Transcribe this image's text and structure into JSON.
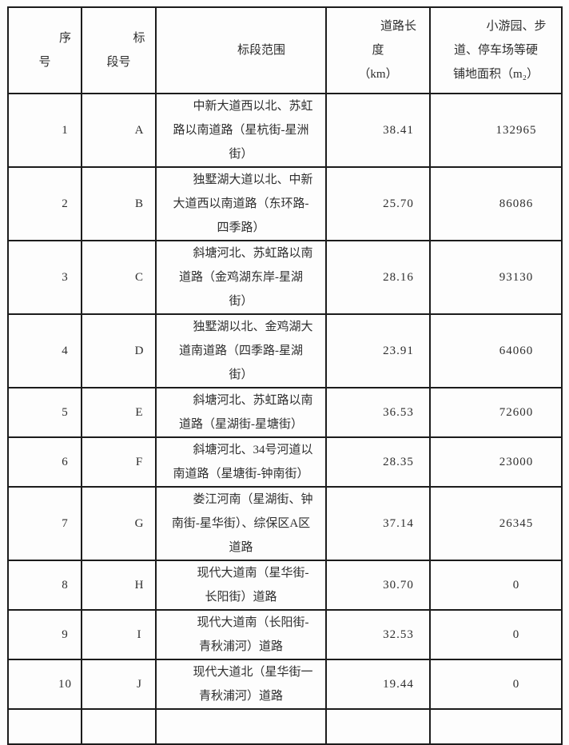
{
  "table": {
    "columns": [
      {
        "id": "seq",
        "label": "序\n号"
      },
      {
        "id": "section",
        "label": "标\n段号"
      },
      {
        "id": "scope",
        "label": "标段范围"
      },
      {
        "id": "length",
        "label": "道路长\n度\n（km）"
      },
      {
        "id": "area",
        "label": "小游园、步\n道、停车场等硬\n铺地面积（m₂）"
      }
    ],
    "rows": [
      {
        "seq": "1",
        "section": "A",
        "scope": "中新大道西以北、苏虹\n路以南道路（星杭街-星洲\n街）",
        "length": "38.41",
        "area": "132965"
      },
      {
        "seq": "2",
        "section": "B",
        "scope": "独墅湖大道以北、中新\n大道西以南道路（东环路-\n四季路）",
        "length": "25.70",
        "area": "86086"
      },
      {
        "seq": "3",
        "section": "C",
        "scope": "斜塘河北、苏虹路以南\n道路（金鸡湖东岸-星湖\n街）",
        "length": "28.16",
        "area": "93130"
      },
      {
        "seq": "4",
        "section": "D",
        "scope": "独墅湖以北、金鸡湖大\n道南道路（四季路-星湖\n街）",
        "length": "23.91",
        "area": "64060"
      },
      {
        "seq": "5",
        "section": "E",
        "scope": "斜塘河北、苏虹路以南\n道路（星湖街-星塘街）",
        "length": "36.53",
        "area": "72600"
      },
      {
        "seq": "6",
        "section": "F",
        "scope": "斜塘河北、34号河道以\n南道路（星塘街-钟南街）",
        "length": "28.35",
        "area": "23000"
      },
      {
        "seq": "7",
        "section": "G",
        "scope": "娄江河南（星湖街、钟\n南街-星华街）、综保区A区\n道路",
        "length": "37.14",
        "area": "26345"
      },
      {
        "seq": "8",
        "section": "H",
        "scope": "现代大道南（星华街-\n长阳街）道路",
        "length": "30.70",
        "area": "0"
      },
      {
        "seq": "9",
        "section": "I",
        "scope": "现代大道南（长阳街-\n青秋浦河）道路",
        "length": "32.53",
        "area": "0"
      },
      {
        "seq": "10",
        "section": "J",
        "scope": "现代大道北（星华街一\n青秋浦河）道路",
        "length": "19.44",
        "area": "0"
      }
    ],
    "colors": {
      "border": "#1c1c1c",
      "text": "#2e2e2e",
      "background": "#fdfdfd"
    }
  }
}
